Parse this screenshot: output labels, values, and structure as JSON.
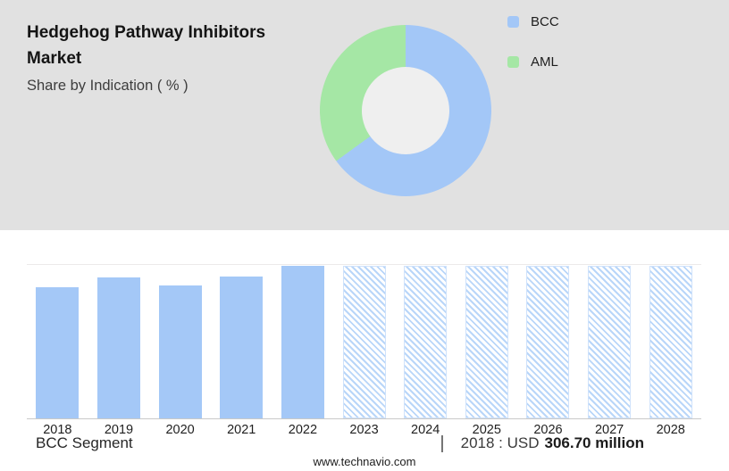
{
  "header": {
    "title": "Hedgehog Pathway Inhibitors Market",
    "subtitle": "Share by Indication ( % )"
  },
  "colors": {
    "panel_background": "#e1e1e1",
    "bcc_blue": "#a3c7f7",
    "aml_green": "#a5e7a5",
    "hatch_blue": "#b9d6f9"
  },
  "chart_data": [
    {
      "type": "pie",
      "donut": true,
      "title": "Share by Indication ( % )",
      "labels": [
        "BCC",
        "AML"
      ],
      "values": [
        65,
        35
      ],
      "colors": [
        "#a3c7f7",
        "#a5e7a5"
      ],
      "legend_position": "right"
    },
    {
      "type": "bar",
      "title": "BCC Segment market size, USD million",
      "categories": [
        "2018",
        "2019",
        "2020",
        "2021",
        "2022",
        "2023",
        "2024",
        "2025",
        "2026",
        "2027",
        "2028"
      ],
      "values": [
        306.7,
        330,
        311,
        332,
        357,
        357,
        357,
        357,
        357,
        357,
        357
      ],
      "solid_through": "2022",
      "forecast_from": "2023",
      "forecast_style": "hatched",
      "bar_color": "#a4c8f7",
      "hatch_color": "#b9d6f9",
      "ylim": [
        0,
        360
      ],
      "xlabel": "",
      "ylabel": "",
      "grid": "top-and-baseline-only",
      "known_point": {
        "year": "2018",
        "value_text": "USD 306.70 million"
      }
    }
  ],
  "legend": [
    {
      "label": "BCC",
      "color": "#a3c7f7"
    },
    {
      "label": "AML",
      "color": "#a5e7a5"
    }
  ],
  "footer": {
    "segment_label": "BCC Segment",
    "separator": "|",
    "stat_prefix": "2018 : USD",
    "stat_value": "306.70 million",
    "website": "www.technavio.com"
  }
}
